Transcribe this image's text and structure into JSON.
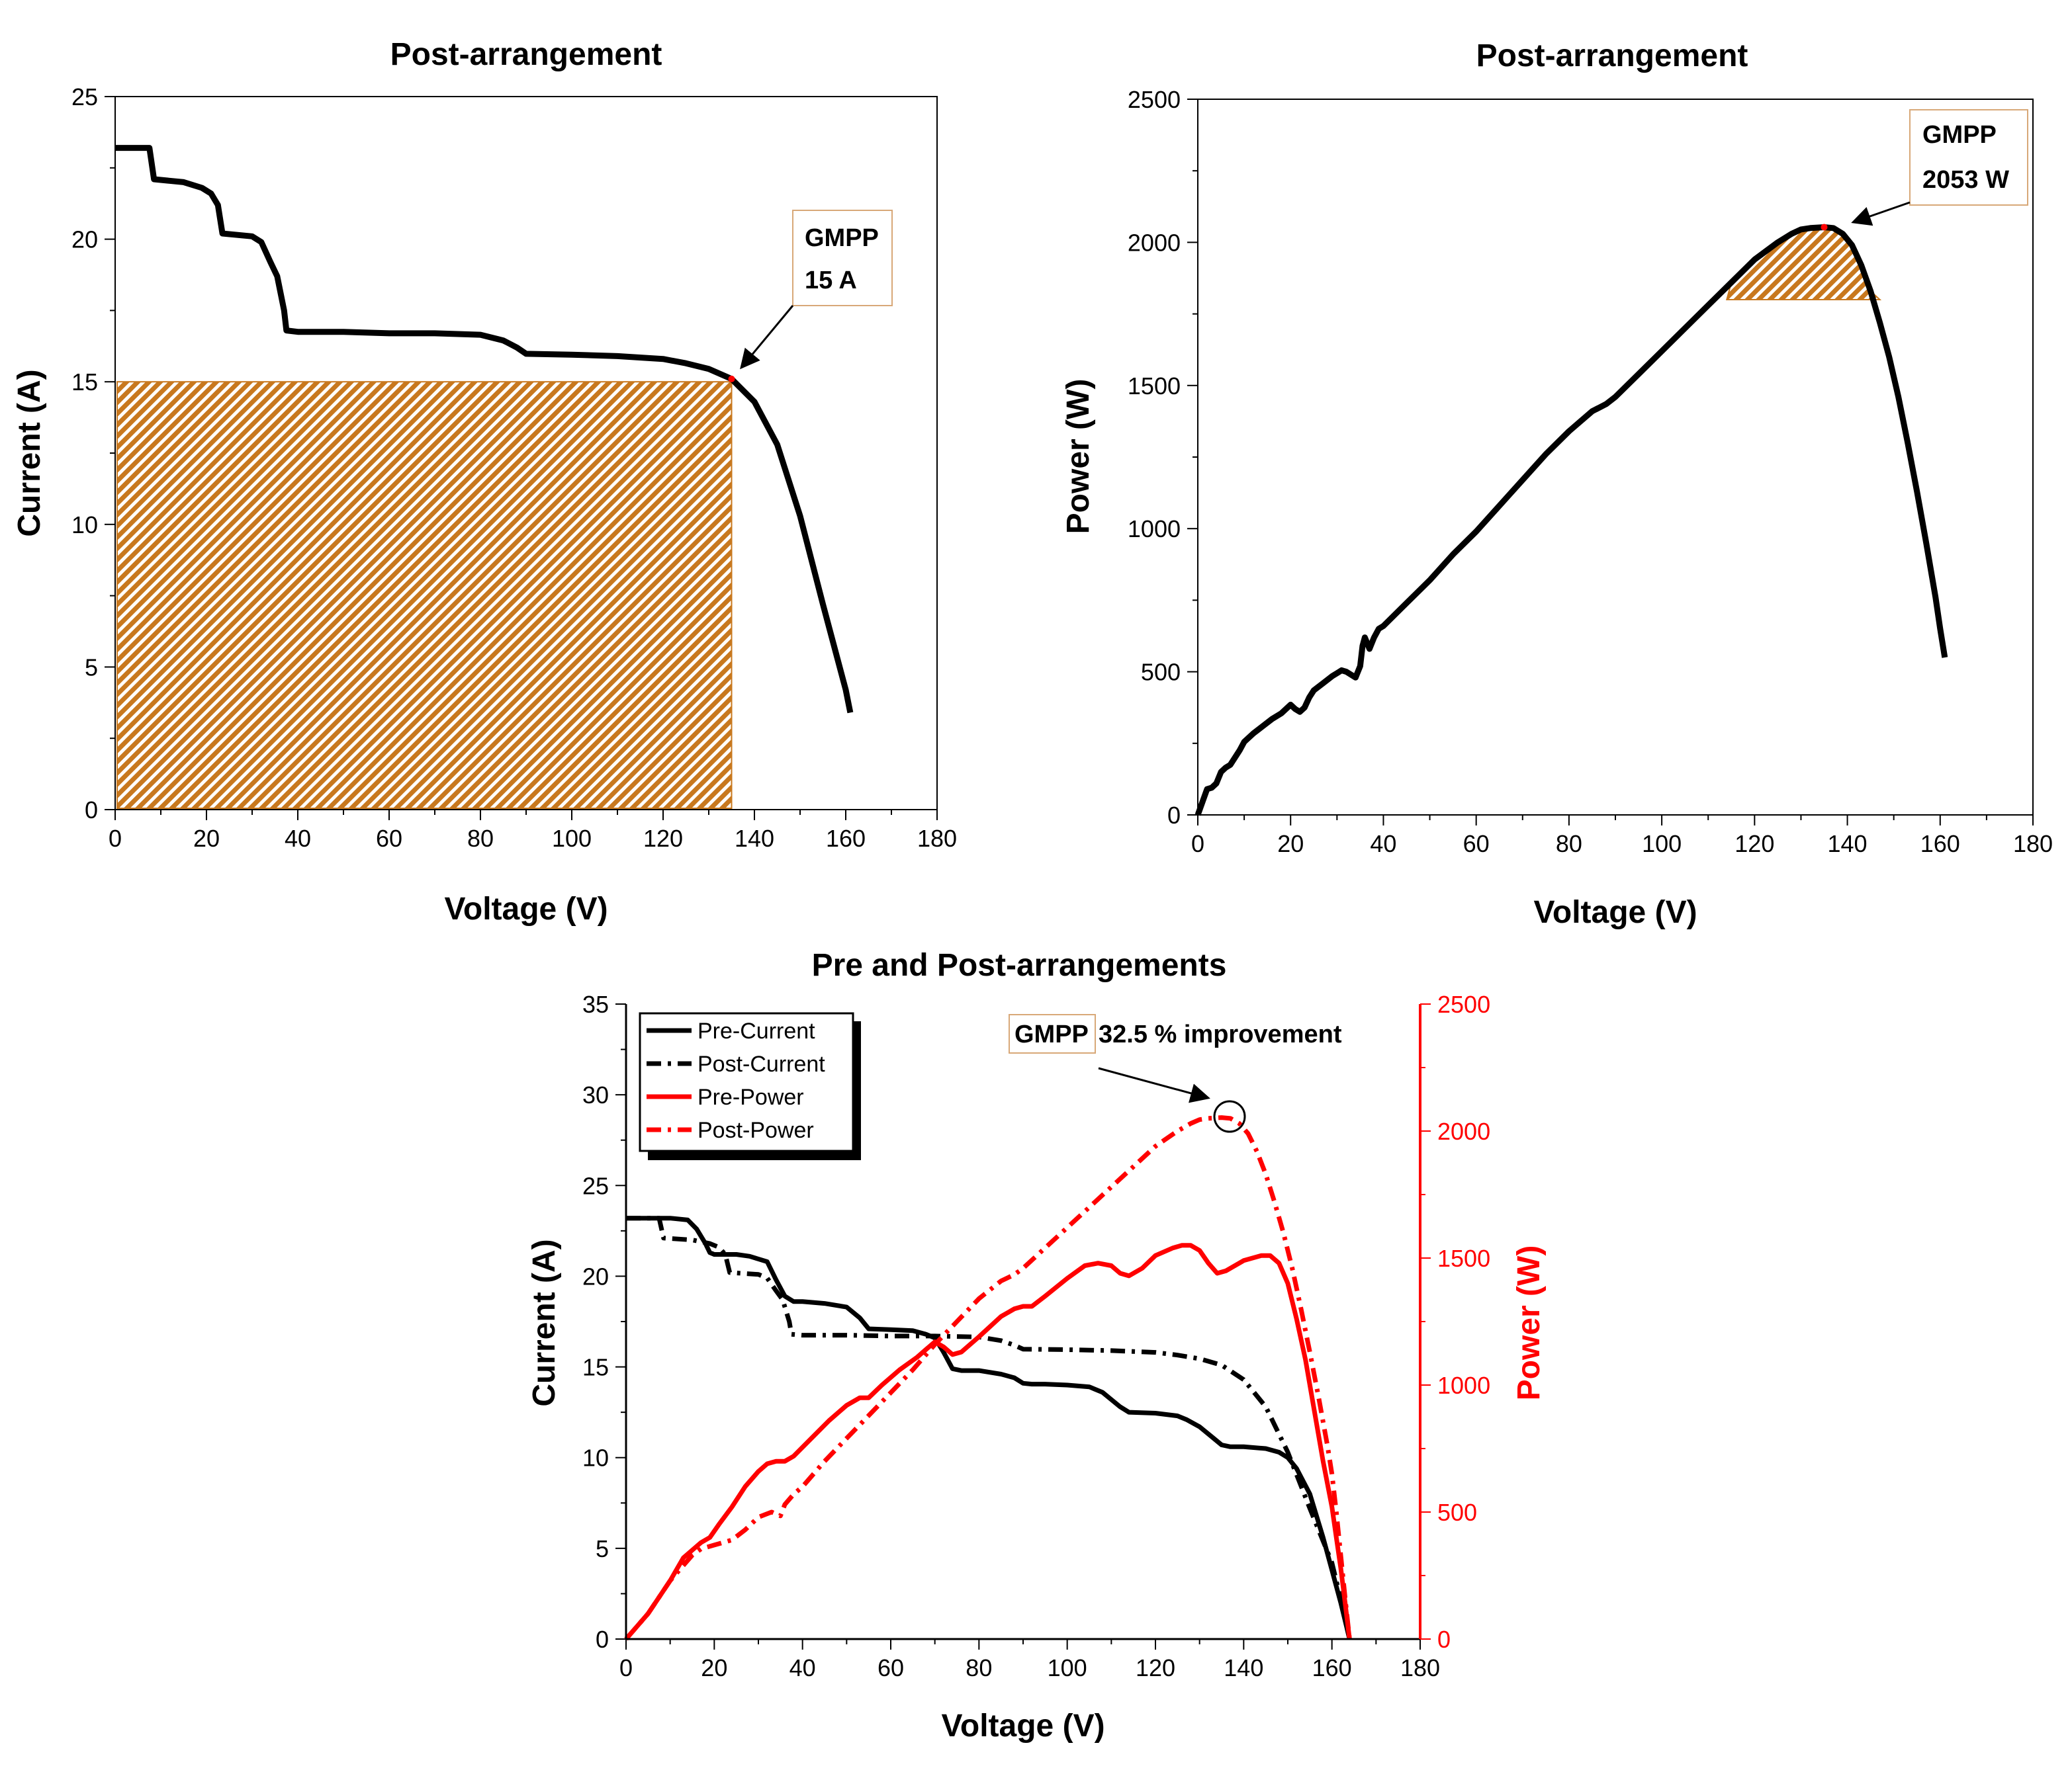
{
  "colors": {
    "black": "#000000",
    "red": "#ff0000",
    "hatch": "#c8781e",
    "annotation_border": "#d8a878"
  },
  "chart_data": [
    {
      "type": "line",
      "title": "Post-arrangement",
      "xlabel": "Voltage (V)",
      "ylabel": "Current (A)",
      "xlim": [
        0,
        180
      ],
      "ylim": [
        0,
        25
      ],
      "xticks": [
        "0",
        "20",
        "40",
        "60",
        "80",
        "100",
        "120",
        "140",
        "160",
        "180"
      ],
      "yticks": [
        "0",
        "5",
        "10",
        "15",
        "20",
        "25"
      ],
      "series": [
        {
          "name": "Post-Current",
          "x": [
            0,
            7.5,
            8.5,
            15,
            19,
            21,
            22.5,
            23.5,
            30,
            32,
            34,
            35.5,
            37,
            37.5,
            40,
            50,
            60,
            70,
            80,
            85,
            88,
            90,
            100,
            110,
            120,
            125,
            130,
            135,
            140,
            145,
            150,
            155,
            160,
            161
          ],
          "y": [
            23.2,
            23.2,
            22.1,
            22,
            21.8,
            21.6,
            21.2,
            20.2,
            20.1,
            19.9,
            19.2,
            18.7,
            17.5,
            16.8,
            16.75,
            16.75,
            16.7,
            16.7,
            16.65,
            16.45,
            16.2,
            15.98,
            15.95,
            15.9,
            15.8,
            15.65,
            15.45,
            15.1,
            14.3,
            12.8,
            10.3,
            7.2,
            4.2,
            3.4
          ]
        }
      ],
      "annotation": {
        "label": "GMPP",
        "value": "15 A",
        "at": [
          135,
          15.1
        ]
      },
      "shaded_region": {
        "x": [
          0,
          135
        ],
        "y": [
          0,
          15
        ]
      }
    },
    {
      "type": "line",
      "title": "Post-arrangement",
      "xlabel": "Voltage (V)",
      "ylabel": "Power (W)",
      "xlim": [
        0,
        180
      ],
      "ylim": [
        0,
        2500
      ],
      "xticks": [
        "0",
        "20",
        "40",
        "60",
        "80",
        "100",
        "120",
        "140",
        "160",
        "180"
      ],
      "yticks": [
        "0",
        "500",
        "1000",
        "1500",
        "2000",
        "2500"
      ],
      "series": [
        {
          "name": "Post-Power",
          "x": [
            0,
            1,
            2,
            3,
            4,
            5,
            6,
            7,
            8,
            9,
            10,
            12,
            14,
            16,
            18,
            19,
            20,
            21,
            22,
            23,
            24,
            25,
            27,
            29,
            30,
            31,
            32,
            33,
            34,
            35,
            35.5,
            36,
            36.5,
            37,
            38,
            39,
            40,
            45,
            50,
            55,
            60,
            65,
            70,
            75,
            80,
            85,
            88,
            90,
            95,
            100,
            105,
            110,
            115,
            120,
            125,
            128,
            130,
            132,
            135,
            137,
            139,
            141,
            143,
            145,
            147,
            149,
            151,
            153,
            155,
            157,
            159,
            160,
            161
          ],
          "y": [
            0,
            45,
            90,
            95,
            110,
            150,
            165,
            175,
            200,
            225,
            255,
            285,
            310,
            335,
            355,
            370,
            385,
            370,
            360,
            375,
            410,
            435,
            460,
            485,
            495,
            505,
            500,
            490,
            480,
            520,
            590,
            620,
            600,
            580,
            620,
            650,
            660,
            740,
            820,
            910,
            990,
            1080,
            1170,
            1260,
            1340,
            1410,
            1435,
            1460,
            1540,
            1620,
            1700,
            1780,
            1860,
            1940,
            2000,
            2030,
            2045,
            2050,
            2053,
            2050,
            2030,
            1990,
            1920,
            1830,
            1720,
            1600,
            1460,
            1300,
            1130,
            950,
            760,
            650,
            550
          ]
        }
      ],
      "annotation": {
        "label": "GMPP",
        "value": "2053 W",
        "at": [
          135,
          2053
        ]
      },
      "shaded_region": {
        "x": [
          114,
          147
        ],
        "y": [
          1800,
          2053
        ]
      }
    },
    {
      "type": "line",
      "title": "Pre and Post-arrangements",
      "xlabel": "Voltage (V)",
      "ylabel": "Current (A)",
      "y2label": "Power (W)",
      "xlim": [
        0,
        180
      ],
      "ylim": [
        0,
        35
      ],
      "y2lim": [
        0,
        2500
      ],
      "xticks": [
        "0",
        "20",
        "40",
        "60",
        "80",
        "100",
        "120",
        "140",
        "160",
        "180"
      ],
      "yticks": [
        "0",
        "5",
        "10",
        "15",
        "20",
        "25",
        "30",
        "35"
      ],
      "y2ticks": [
        "0",
        "500",
        "1000",
        "1500",
        "2000",
        "2500"
      ],
      "legend": [
        "Pre-Current",
        "Post-Current",
        "Pre-Power",
        "Post-Power"
      ],
      "legend_position": "top-left",
      "annotation": {
        "label": "GMPP",
        "text": "32.5 % improvement",
        "at": [
          137,
          2040
        ]
      },
      "series": [
        {
          "name": "Pre-Current",
          "axis": "left",
          "style": "solid",
          "color": "#000000",
          "x": [
            0,
            10,
            14,
            16,
            18,
            19,
            20,
            25,
            28,
            32,
            34,
            36,
            38,
            40,
            45,
            50,
            53,
            55,
            60,
            65,
            68,
            70,
            72,
            74,
            76,
            80,
            85,
            88,
            90,
            92,
            95,
            100,
            105,
            108,
            110,
            112,
            114,
            120,
            125,
            127,
            130,
            133,
            135,
            137,
            140,
            145,
            148,
            150,
            152,
            155,
            158,
            160,
            162,
            164
          ],
          "y": [
            23.2,
            23.2,
            23.1,
            22.6,
            21.8,
            21.3,
            21.2,
            21.2,
            21.1,
            20.8,
            19.8,
            18.9,
            18.6,
            18.6,
            18.5,
            18.3,
            17.7,
            17.1,
            17.05,
            17.0,
            16.8,
            16.6,
            15.8,
            14.9,
            14.8,
            14.8,
            14.6,
            14.4,
            14.1,
            14.05,
            14.05,
            14.0,
            13.9,
            13.6,
            13.2,
            12.8,
            12.5,
            12.45,
            12.3,
            12.1,
            11.7,
            11.1,
            10.7,
            10.6,
            10.6,
            10.5,
            10.3,
            10.0,
            9.4,
            8.0,
            5.6,
            3.8,
            2.0,
            0
          ]
        },
        {
          "name": "Post-Current",
          "axis": "left",
          "style": "dashdot",
          "color": "#000000",
          "x": [
            0,
            6.5,
            7.5,
            8.5,
            15,
            19,
            21,
            22.5,
            23.5,
            30,
            32,
            34,
            35.5,
            37,
            37.5,
            40,
            50,
            60,
            70,
            80,
            85,
            88,
            90,
            100,
            110,
            120,
            125,
            130,
            135,
            140,
            145,
            150,
            155,
            160,
            162,
            164
          ],
          "y": [
            23.2,
            23.2,
            23.2,
            22.1,
            22.0,
            21.8,
            21.6,
            21.2,
            20.2,
            20.1,
            19.9,
            19.2,
            18.7,
            17.5,
            16.8,
            16.75,
            16.75,
            16.7,
            16.7,
            16.65,
            16.45,
            16.2,
            15.98,
            15.95,
            15.9,
            15.8,
            15.65,
            15.45,
            15.1,
            14.3,
            12.8,
            10.3,
            7.2,
            4.2,
            2.2,
            0
          ]
        },
        {
          "name": "Pre-Power",
          "axis": "right",
          "style": "solid",
          "color": "#ff0000",
          "x": [
            0,
            5,
            10,
            13,
            15,
            17,
            19,
            21,
            24,
            27,
            30,
            32,
            34,
            36,
            38,
            42,
            46,
            50,
            53,
            55,
            58,
            62,
            66,
            68,
            70,
            72,
            74,
            76,
            80,
            85,
            88,
            90,
            92,
            95,
            100,
            104,
            107,
            110,
            112,
            114,
            117,
            120,
            124,
            126,
            128,
            130,
            132,
            134,
            136,
            140,
            144,
            146,
            148,
            150,
            152,
            154,
            156,
            158,
            160,
            161,
            162,
            163,
            164
          ],
          "y": [
            0,
            100,
            230,
            320,
            350,
            380,
            400,
            450,
            520,
            600,
            660,
            690,
            700,
            700,
            720,
            790,
            860,
            920,
            950,
            950,
            1000,
            1060,
            1110,
            1140,
            1170,
            1150,
            1120,
            1130,
            1190,
            1270,
            1300,
            1310,
            1310,
            1350,
            1420,
            1470,
            1480,
            1470,
            1440,
            1430,
            1460,
            1510,
            1540,
            1550,
            1550,
            1530,
            1480,
            1440,
            1450,
            1490,
            1510,
            1510,
            1480,
            1400,
            1260,
            1100,
            900,
            700,
            520,
            400,
            280,
            140,
            0
          ]
        },
        {
          "name": "Post-Power",
          "axis": "right",
          "style": "dashdot",
          "color": "#ff0000",
          "x": [
            0,
            5,
            10,
            13,
            15,
            17,
            20,
            24,
            27,
            30,
            33,
            35,
            36,
            38,
            40,
            45,
            50,
            55,
            60,
            65,
            70,
            75,
            80,
            85,
            88,
            90,
            95,
            100,
            105,
            110,
            115,
            120,
            125,
            128,
            130,
            132,
            135,
            137,
            139,
            141,
            143,
            145,
            147,
            149,
            151,
            153,
            155,
            157,
            159,
            160,
            161,
            162,
            163,
            164
          ],
          "y": [
            0,
            100,
            230,
            290,
            330,
            355,
            370,
            390,
            430,
            480,
            500,
            485,
            530,
            570,
            600,
            700,
            790,
            880,
            970,
            1060,
            1160,
            1250,
            1340,
            1410,
            1435,
            1460,
            1540,
            1620,
            1700,
            1780,
            1860,
            1940,
            2000,
            2030,
            2045,
            2050,
            2053,
            2050,
            2030,
            1990,
            1920,
            1830,
            1720,
            1600,
            1460,
            1300,
            1130,
            950,
            760,
            650,
            500,
            330,
            160,
            0
          ]
        }
      ]
    }
  ]
}
